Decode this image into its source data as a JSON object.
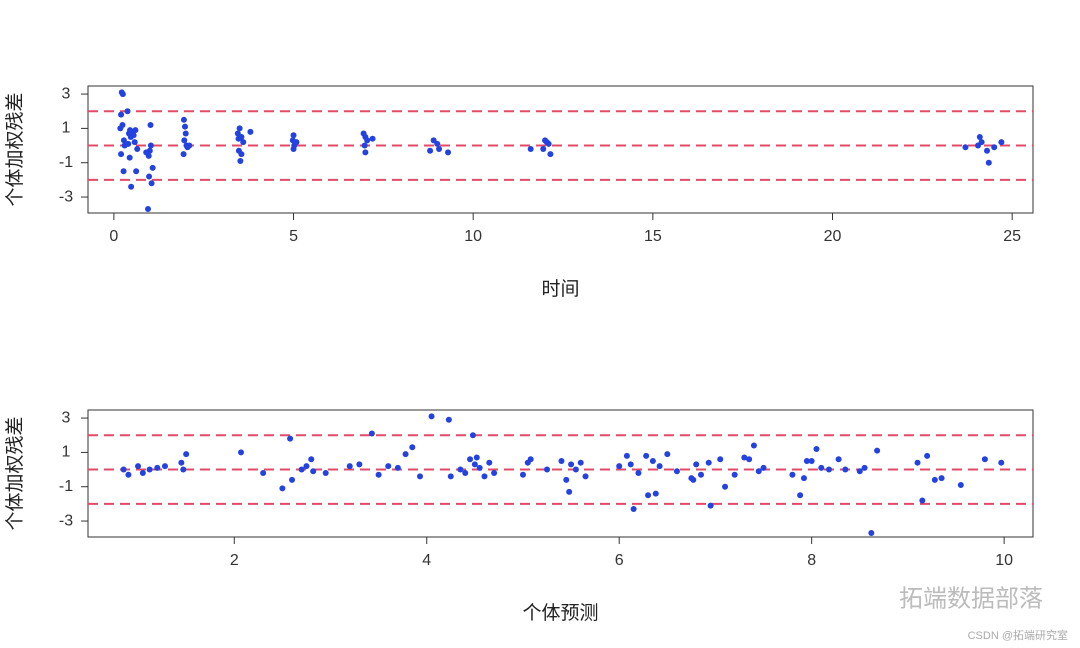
{
  "chart_data": [
    {
      "type": "scatter",
      "xlabel": "时间",
      "ylabel": "个体加权残差",
      "color": "#2342e0",
      "hline_color": "#e24a68",
      "hlines": [
        -2,
        0,
        2
      ],
      "xlim": [
        -0.72,
        25.58
      ],
      "ylim": [
        -3.93,
        3.47
      ],
      "xticks": [
        0,
        5,
        10,
        15,
        20,
        25
      ],
      "yticks": [
        -3,
        -1,
        1,
        3
      ],
      "x": [
        0.22,
        0.25,
        0.2,
        0.24,
        0.18,
        0.28,
        0.2,
        0.27,
        0.3,
        0.38,
        0.42,
        0.45,
        0.4,
        0.44,
        0.48,
        0.5,
        0.47,
        0.55,
        0.6,
        0.62,
        0.58,
        0.65,
        0.95,
        1.02,
        1.05,
        0.98,
        1.08,
        0.97,
        1.0,
        1.03,
        0.9,
        1.95,
        1.98,
        2.0,
        1.96,
        2.02,
        1.94,
        2.1,
        2.05,
        3.5,
        3.45,
        3.55,
        3.48,
        3.52,
        3.6,
        3.55,
        3.8,
        3.47,
        5.0,
        4.98,
        5.02,
        5.0,
        5.08,
        6.95,
        7.0,
        7.05,
        6.98,
        7.0,
        7.2,
        8.9,
        9.0,
        9.05,
        8.8,
        9.3,
        11.6,
        12.0,
        12.1,
        11.95,
        12.15,
        12.05,
        24.1,
        24.15,
        24.05,
        24.3,
        24.35,
        23.7,
        24.5,
        24.7
      ],
      "values": [
        3.1,
        3.0,
        1.8,
        1.2,
        1.0,
        0.3,
        -0.5,
        -1.5,
        0.0,
        2.0,
        0.7,
        0.9,
        0.1,
        -0.7,
        -2.4,
        0.8,
        0.5,
        0.6,
        0.9,
        -1.5,
        0.2,
        -0.2,
        -3.7,
        1.2,
        -2.2,
        -1.8,
        -1.3,
        -0.6,
        -0.3,
        0.0,
        -0.4,
        1.5,
        1.1,
        0.7,
        0.3,
        0.0,
        -0.5,
        0.0,
        -0.1,
        1.0,
        0.7,
        0.5,
        -0.3,
        -0.9,
        0.2,
        -0.5,
        0.8,
        0.4,
        0.6,
        0.3,
        0.0,
        -0.2,
        0.2,
        0.7,
        0.5,
        0.3,
        0.0,
        -0.4,
        0.4,
        0.3,
        0.1,
        -0.2,
        -0.3,
        -0.4,
        -0.2,
        0.3,
        0.1,
        -0.2,
        -0.5,
        0.2,
        0.5,
        0.2,
        0.0,
        -0.3,
        -1.0,
        -0.1,
        -0.1,
        0.2
      ]
    },
    {
      "type": "scatter",
      "xlabel": "个体预测",
      "ylabel": "个体加权残差",
      "color": "#2342e0",
      "hline_color": "#e24a68",
      "hlines": [
        -2,
        0,
        2
      ],
      "xlim": [
        0.48,
        10.3
      ],
      "ylim": [
        -3.93,
        3.47
      ],
      "xticks": [
        2,
        4,
        6,
        8,
        10
      ],
      "yticks": [
        -3,
        -1,
        1,
        3
      ],
      "x": [
        0.85,
        0.9,
        1.0,
        1.05,
        1.12,
        1.2,
        1.28,
        1.45,
        1.5,
        1.47,
        2.07,
        2.3,
        2.5,
        2.58,
        2.6,
        2.7,
        2.75,
        2.8,
        2.82,
        2.95,
        3.2,
        3.3,
        3.43,
        3.5,
        3.6,
        3.7,
        3.78,
        3.85,
        3.93,
        4.05,
        4.23,
        4.25,
        4.35,
        4.4,
        4.45,
        4.48,
        4.5,
        4.52,
        4.55,
        4.6,
        4.65,
        4.7,
        5.0,
        5.05,
        5.08,
        5.25,
        5.4,
        5.45,
        5.48,
        5.5,
        5.55,
        5.6,
        5.65,
        6.0,
        6.08,
        6.12,
        6.15,
        6.2,
        6.28,
        6.3,
        6.35,
        6.38,
        6.42,
        6.5,
        6.6,
        6.75,
        6.77,
        6.8,
        6.85,
        6.93,
        6.95,
        7.05,
        7.1,
        7.2,
        7.3,
        7.35,
        7.4,
        7.45,
        7.5,
        7.8,
        7.88,
        7.92,
        7.95,
        8.0,
        8.05,
        8.1,
        8.18,
        8.28,
        8.35,
        8.5,
        8.55,
        8.62,
        8.68,
        9.1,
        9.15,
        9.2,
        9.28,
        9.35,
        9.55,
        9.8,
        9.97
      ],
      "values": [
        0.0,
        -0.3,
        0.2,
        -0.2,
        0.0,
        0.1,
        0.2,
        0.4,
        0.9,
        0.0,
        1.0,
        -0.2,
        -1.1,
        1.8,
        -0.6,
        0.0,
        0.2,
        0.6,
        -0.1,
        -0.2,
        0.2,
        0.3,
        2.1,
        -0.3,
        0.2,
        0.1,
        0.9,
        1.3,
        -0.4,
        3.1,
        2.9,
        -0.4,
        0.0,
        -0.2,
        0.6,
        2.0,
        0.3,
        0.7,
        0.1,
        -0.4,
        0.4,
        -0.2,
        -0.3,
        0.4,
        0.6,
        0.0,
        0.5,
        -0.6,
        -1.3,
        0.3,
        0.0,
        0.4,
        -0.4,
        0.2,
        0.8,
        0.3,
        -2.3,
        -0.2,
        0.8,
        -1.5,
        0.5,
        -1.4,
        0.2,
        0.9,
        -0.1,
        -0.5,
        -0.6,
        0.3,
        -0.3,
        0.4,
        -2.1,
        0.6,
        -1.0,
        -0.3,
        0.7,
        0.6,
        1.4,
        -0.1,
        0.1,
        -0.3,
        -1.5,
        -0.5,
        0.5,
        0.5,
        1.2,
        0.1,
        0.0,
        0.6,
        0.0,
        -0.1,
        0.1,
        -3.7,
        1.1,
        0.4,
        -1.8,
        0.8,
        -0.6,
        -0.5,
        -0.9,
        0.6,
        0.4
      ]
    }
  ],
  "watermark": "拓端数据部落",
  "credit": "CSDN @拓端研究室"
}
